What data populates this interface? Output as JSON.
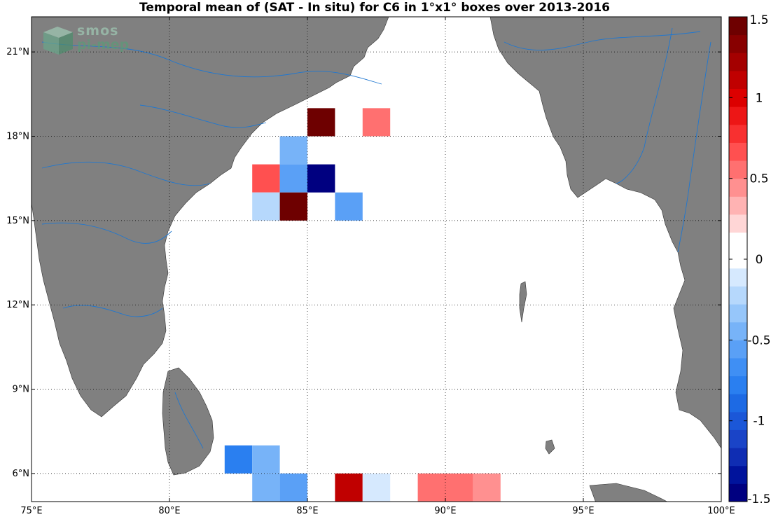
{
  "title": "Temporal mean of (SAT - In situ) for C6 in 1°x1° boxes over 2013-2016",
  "logo": {
    "line1": "smos",
    "line2": "pi-mep"
  },
  "colors": {
    "land": "#808080",
    "river": "#1f77d0",
    "ocean": "#ffffff",
    "grid": "#000000"
  },
  "map": {
    "lon_range": [
      75,
      100
    ],
    "lat_range": [
      5,
      22.25
    ],
    "lon_ticks": [
      "75°E",
      "80°E",
      "85°E",
      "90°E",
      "95°E",
      "100°E"
    ],
    "lon_values": [
      75,
      80,
      85,
      90,
      95,
      100
    ],
    "lat_ticks": [
      "6°N",
      "9°N",
      "12°N",
      "15°N",
      "18°N",
      "21°N"
    ],
    "lat_values": [
      6,
      9,
      12,
      15,
      18,
      21
    ],
    "grid": "dotted"
  },
  "chart_data": {
    "type": "heatmap",
    "cell_size_deg": 1,
    "cells": [
      {
        "lon": 85,
        "lat": 18,
        "value": 1.5
      },
      {
        "lon": 87,
        "lat": 18,
        "value": 0.5
      },
      {
        "lon": 84,
        "lat": 17,
        "value": -0.4
      },
      {
        "lon": 83,
        "lat": 16,
        "value": 0.7
      },
      {
        "lon": 84,
        "lat": 16,
        "value": -0.6
      },
      {
        "lon": 85,
        "lat": 16,
        "value": -1.5
      },
      {
        "lon": 83,
        "lat": 15,
        "value": -0.2
      },
      {
        "lon": 84,
        "lat": 15,
        "value": 1.5
      },
      {
        "lon": 86,
        "lat": 15,
        "value": -0.6
      },
      {
        "lon": 82,
        "lat": 6,
        "value": -0.8
      },
      {
        "lon": 83,
        "lat": 6,
        "value": -0.5
      },
      {
        "lon": 91,
        "lat": 6,
        "value": 0.1
      },
      {
        "lon": 83,
        "lat": 5,
        "value": -0.4
      },
      {
        "lon": 84,
        "lat": 5,
        "value": -0.6
      },
      {
        "lon": 86,
        "lat": 5,
        "value": 1.1
      },
      {
        "lon": 87,
        "lat": 5,
        "value": -0.1
      },
      {
        "lon": 89,
        "lat": 5,
        "value": 0.6
      },
      {
        "lon": 90,
        "lat": 5,
        "value": 0.6
      },
      {
        "lon": 91,
        "lat": 5,
        "value": 0.4
      }
    ],
    "colorbar": {
      "range": [
        -1.5,
        1.5
      ],
      "ticks": [
        "-1.5",
        "-1",
        "-0.5",
        "0",
        "0.5",
        "1",
        "1.5"
      ],
      "tick_values": [
        -1.5,
        -1,
        -0.5,
        0,
        0.5,
        1,
        1.5
      ],
      "colors": [
        "#000080",
        "#00139c",
        "#0f2db3",
        "#1a44c7",
        "#1b57d8",
        "#1d6ae4",
        "#2a7ff0",
        "#3f8ff4",
        "#5aa0f6",
        "#77b3f8",
        "#96c6fa",
        "#b6d8fc",
        "#d6e9fe",
        "#ffffff",
        "#ffffff",
        "#ffd6d6",
        "#ffb3b3",
        "#ff9090",
        "#ff7070",
        "#ff5050",
        "#f83030",
        "#ed1616",
        "#dc0000",
        "#c00000",
        "#a40000",
        "#880000",
        "#6e0000"
      ]
    }
  }
}
